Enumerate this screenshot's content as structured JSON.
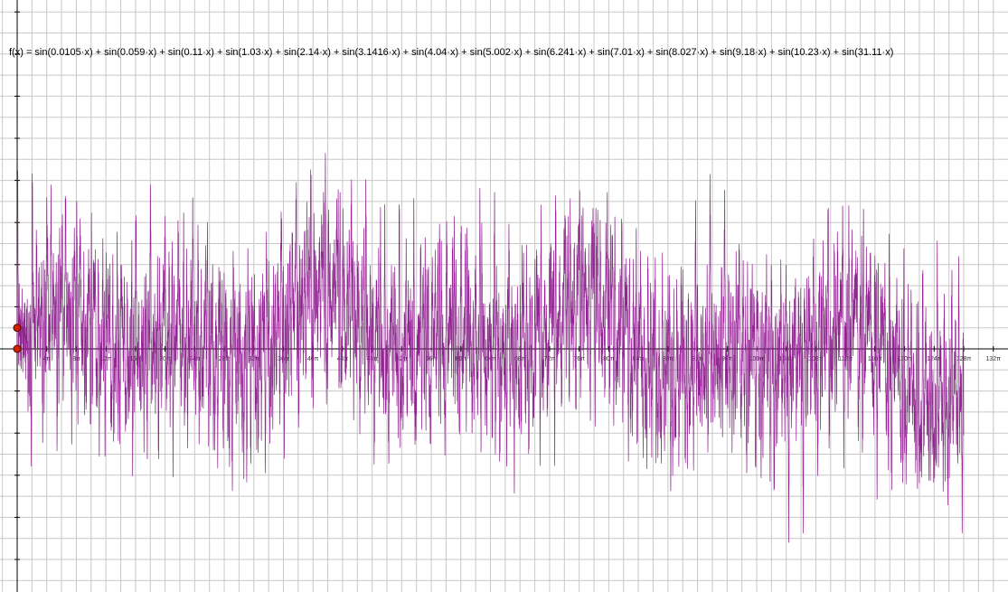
{
  "chart_data": {
    "type": "line",
    "title": "f(x) = sin(0.0105·x) + sin(0.059·x) + sin(0.11·x) + sin(1.03·x) + sin(2.14·x) + sin(3.1416·x) + sin(4.04·x) + sin(5.002·x) + sin(6.241·x) + sin(7.01·x) + sin(8.027·x) + sin(9.18·x) + sin(10.23·x) + sin(31.11·x)",
    "xlabel": "",
    "ylabel": "",
    "xlim": [
      0,
      132
    ],
    "ylim": [
      -12,
      16
    ],
    "x_axis_unit": "π",
    "x_tick_labels": [
      "4π",
      "8π",
      "12π",
      "16π",
      "20π",
      "24π",
      "28π",
      "32π",
      "36π",
      "40π",
      "44π",
      "48π",
      "52π",
      "56π",
      "60π",
      "64π",
      "68π",
      "72π",
      "76π",
      "80π",
      "84π",
      "88π",
      "92π",
      "96π",
      "100π",
      "104π",
      "108π",
      "112π",
      "116π",
      "120π",
      "124π",
      "128π",
      "132π"
    ],
    "y_ticks": [
      -12,
      -10,
      -8,
      -6,
      -4,
      -2,
      0,
      2,
      4,
      6,
      8,
      10,
      12,
      14,
      16
    ],
    "grid": true,
    "series": [
      {
        "function": "sin(0.0105x)+sin(0.059x)+sin(0.11x)+sin(1.03x)+sin(2.14x)+sin(3.1416x)+sin(4.04x)+sin(5.002x)+sin(6.241x)+sin(7.01x)+sin(8.027x)+sin(9.18x)+sin(10.23x)+sin(31.11x)",
        "coefficients": [
          0.0105,
          0.059,
          0.11,
          1.03,
          2.14,
          3.1416,
          4.04,
          5.002,
          6.241,
          7.01,
          8.027,
          9.18,
          10.23,
          31.11
        ],
        "domain_in_pi": [
          0,
          128
        ],
        "color": "#8b1a8b"
      }
    ],
    "points": [
      {
        "x": 0,
        "y": 0,
        "color": "#cc2200"
      },
      {
        "x": 0,
        "y": 1,
        "color": "#cc2200"
      }
    ]
  }
}
